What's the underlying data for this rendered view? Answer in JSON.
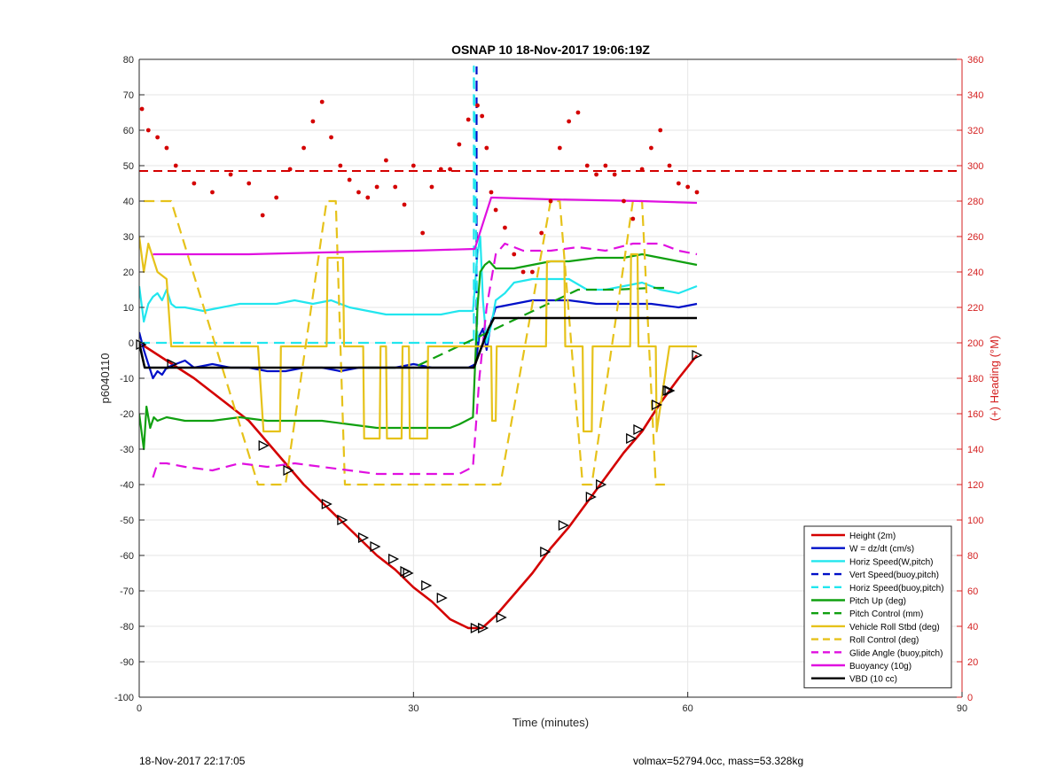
{
  "chart_data": {
    "type": "line",
    "title": "OSNAP 10 18-Nov-2017 19:06:19Z",
    "xlabel": "Time (minutes)",
    "ylabel": "p6040110",
    "y2label": "(+) Heading (°M)",
    "xlim": [
      0,
      90
    ],
    "ylim": [
      -100,
      80
    ],
    "y2lim": [
      0,
      360
    ],
    "xticks": [
      "0",
      "30",
      "60",
      "90"
    ],
    "yticks": [
      "-100",
      "-90",
      "-80",
      "-70",
      "-60",
      "-50",
      "-40",
      "-30",
      "-20",
      "-10",
      "0",
      "10",
      "20",
      "30",
      "40",
      "50",
      "60",
      "70",
      "80"
    ],
    "y2ticks": [
      "0",
      "20",
      "40",
      "60",
      "80",
      "100",
      "120",
      "140",
      "160",
      "180",
      "200",
      "220",
      "240",
      "260",
      "280",
      "300",
      "320",
      "340",
      "360"
    ],
    "grid": true,
    "legend_position": "bottom-right",
    "colors": {
      "red": "#d40000",
      "blue": "#0010c8",
      "cyan": "#22e6ee",
      "green": "#10a010",
      "yellow": "#e6c21a",
      "magenta": "#e010e0",
      "black": "#000000",
      "right_axis": "#d42020"
    },
    "series": [
      {
        "name": "Height (2m)",
        "color": "#d40000",
        "style": "solid",
        "x": [
          0,
          3,
          6,
          9,
          12,
          14,
          16,
          18,
          20,
          22,
          24,
          26,
          28,
          30,
          32,
          34,
          36,
          37.5,
          39,
          41,
          43,
          45,
          47,
          49,
          51,
          53,
          55,
          57,
          59,
          61
        ],
        "y": [
          0,
          -5,
          -10,
          -16,
          -22,
          -28,
          -34,
          -40,
          -45,
          -50,
          -55,
          -60,
          -64,
          -69,
          -73,
          -78,
          -80.5,
          -80.5,
          -77,
          -71,
          -65,
          -58,
          -52,
          -45,
          -38,
          -31,
          -25,
          -17,
          -10,
          -3.5
        ]
      },
      {
        "name": "W = dz/dt (cm/s)",
        "color": "#0010c8",
        "style": "solid",
        "x": [
          0,
          0.5,
          1,
          1.5,
          2,
          2.5,
          3,
          4,
          5,
          6,
          8,
          10,
          12,
          14,
          16,
          18,
          20,
          22,
          24,
          26,
          28,
          30,
          32,
          34,
          36,
          36.8,
          37.2,
          37.6,
          38,
          38.5,
          39,
          41,
          43,
          45,
          47,
          50,
          53,
          56,
          59,
          61
        ],
        "y": [
          3,
          -2,
          -6,
          -10,
          -8,
          -9,
          -7,
          -6,
          -5,
          -7,
          -6,
          -7,
          -7,
          -8,
          -8,
          -7,
          -7,
          -8,
          -7,
          -7,
          -7,
          -6,
          -7,
          -7,
          -7,
          -6,
          2,
          4,
          -2,
          6,
          10,
          11,
          12,
          12,
          12,
          11,
          11,
          11,
          10,
          11
        ]
      },
      {
        "name": "Horiz Speed(W,pitch)",
        "color": "#22e6ee",
        "style": "solid",
        "x": [
          0,
          0.5,
          1,
          1.5,
          2,
          2.5,
          3,
          3.5,
          4,
          5,
          7,
          9,
          11,
          13,
          15,
          17,
          19,
          21,
          22,
          23,
          25,
          27,
          29,
          31,
          33,
          35,
          36.5,
          37,
          37.3,
          37.6,
          38,
          38.5,
          39,
          40,
          41,
          43,
          45,
          47,
          49,
          51,
          53,
          55,
          57,
          59,
          61
        ],
        "y": [
          16,
          6,
          11,
          13,
          14,
          12,
          15,
          11,
          10,
          10,
          9,
          10,
          11,
          11,
          11,
          12,
          11,
          12,
          11,
          10,
          9,
          8,
          8,
          8,
          8,
          9,
          9,
          25,
          30,
          12,
          0,
          5,
          12,
          14,
          17,
          18,
          18,
          18,
          15,
          15,
          16,
          17,
          15,
          14,
          16
        ]
      },
      {
        "name": "Vert Speed(buoy,pitch)",
        "color": "#0010c8",
        "style": "dashed",
        "x": [
          36.9,
          36.9
        ],
        "y": [
          -5,
          78
        ]
      },
      {
        "name": "Horiz Speed(buoy,pitch)",
        "color": "#22e6ee",
        "style": "dashed",
        "x": [
          0,
          36.5,
          36.6,
          36.6,
          37
        ],
        "y": [
          0,
          0,
          0,
          78,
          0
        ]
      },
      {
        "name": "Pitch Up (deg)",
        "color": "#10a010",
        "style": "solid",
        "x": [
          0,
          0.5,
          0.8,
          1.2,
          1.6,
          2,
          3,
          5,
          8,
          11,
          14,
          17,
          20,
          23,
          26,
          29,
          32,
          34,
          35,
          36.5,
          37,
          37.3,
          37.8,
          38.3,
          39,
          41,
          43,
          45,
          47,
          50,
          53,
          55,
          57,
          59,
          61
        ],
        "y": [
          -20,
          -30,
          -18,
          -24,
          -21,
          -22,
          -21,
          -22,
          -22,
          -21,
          -22,
          -22,
          -22,
          -23,
          -24,
          -24,
          -24,
          -24,
          -23,
          -21,
          10,
          20,
          22,
          23,
          21,
          21,
          22,
          23,
          23,
          24,
          24,
          25,
          24,
          23,
          22
        ]
      },
      {
        "name": "Pitch Control (mm)",
        "color": "#10a010",
        "style": "dashed",
        "x": [
          25,
          30,
          48,
          52,
          56,
          58
        ],
        "y": [
          -7,
          -7,
          15,
          15,
          15.5,
          15.5
        ]
      },
      {
        "name": "Vehicle Roll Stbd (deg)",
        "color": "#e6c21a",
        "style": "solid",
        "x": [
          0,
          0.5,
          1,
          2,
          3,
          3.5,
          3.6,
          8,
          13,
          13.6,
          15.4,
          15.5,
          20.5,
          20.6,
          22.3,
          22.4,
          24.5,
          24.6,
          26.3,
          26.4,
          27,
          27.1,
          28.7,
          28.8,
          29.5,
          29.6,
          31.5,
          31.6,
          33,
          33.1,
          37,
          37.1,
          38.5,
          38.6,
          39,
          39.1,
          44.5,
          44.6,
          46.5,
          46.6,
          48.5,
          48.6,
          49.5,
          49.6,
          53.7,
          53.8,
          54.5,
          54.6,
          56.5,
          56.6,
          58,
          61
        ],
        "y": [
          30,
          20,
          28,
          20,
          18,
          -1,
          -1,
          -1,
          -1,
          -25,
          -25,
          -1,
          -1,
          24,
          24,
          -1,
          -1,
          -27,
          -27,
          -1,
          -1,
          -27,
          -27,
          -1,
          -1,
          -27,
          -27,
          -1,
          -1,
          -1,
          -1,
          -1,
          -1,
          -22,
          -22,
          -1,
          -1,
          23,
          23,
          -1,
          -1,
          -25,
          -25,
          -1,
          -1,
          25,
          25,
          -1,
          -1,
          -25,
          -1,
          -1
        ]
      },
      {
        "name": "Roll Control (deg)",
        "color": "#e6c21a",
        "style": "dashed",
        "x": [
          0.5,
          3.5,
          13,
          14,
          15,
          16,
          20.5,
          21.5,
          22.5,
          24.5,
          25.5,
          27,
          28,
          29,
          30,
          31.5,
          32.5,
          33,
          38.5,
          39.5,
          45,
          46,
          48.5,
          49.5,
          54,
          55,
          56.5,
          57.5
        ],
        "y": [
          40,
          40,
          -40,
          -40,
          -40,
          -40,
          40,
          40,
          -40,
          -40,
          -40,
          -40,
          -40,
          -40,
          -40,
          -40,
          -40,
          -40,
          -40,
          -40,
          40,
          40,
          -40,
          -40,
          40,
          40,
          -40,
          -40
        ]
      },
      {
        "name": "Glide Angle (buoy,pitch)",
        "color": "#e010e0",
        "style": "dashed",
        "x": [
          1.5,
          2,
          3,
          5,
          8,
          11,
          14,
          17,
          20,
          23,
          26,
          29,
          32,
          35,
          36.5,
          37.2,
          38,
          39,
          40,
          42,
          45,
          48,
          51,
          54,
          57,
          59,
          61
        ],
        "y": [
          -38,
          -34,
          -34,
          -35,
          -36,
          -34,
          -35,
          -34,
          -35,
          -36,
          -37,
          -37,
          -37,
          -37,
          -35,
          -10,
          10,
          25,
          28,
          26,
          26,
          27,
          26,
          28,
          28,
          26,
          25
        ]
      },
      {
        "name": "Buoyancy (10g)",
        "color": "#e010e0",
        "style": "solid",
        "x": [
          1.5,
          12,
          20,
          30,
          36.7,
          38.5,
          45,
          55,
          61
        ],
        "y": [
          25,
          25,
          25.5,
          26,
          26.5,
          41,
          40.5,
          40,
          39.5
        ]
      },
      {
        "name": "VBD (10 cc)",
        "color": "#000000",
        "style": "solid",
        "x": [
          0,
          0.6,
          36.6,
          38.2,
          38.8,
          61
        ],
        "y": [
          0,
          -7,
          -7,
          4,
          7,
          7
        ]
      }
    ],
    "heading_dots": {
      "axis": "right",
      "color": "#d40000",
      "reference_line": 297,
      "x": [
        0.3,
        1,
        2,
        3,
        4,
        6,
        8,
        10,
        12,
        13.5,
        15,
        16.5,
        18,
        19,
        20,
        21,
        22,
        23,
        24,
        25,
        26,
        27,
        28,
        29,
        30,
        31,
        32,
        33,
        34,
        35,
        36,
        37,
        37.5,
        38,
        38.5,
        39,
        40,
        41,
        42,
        43,
        44,
        45,
        46,
        47,
        48,
        49,
        50,
        51,
        52,
        53,
        54,
        55,
        56,
        57,
        58,
        59,
        60,
        61
      ],
      "y": [
        332,
        320,
        316,
        310,
        300,
        290,
        285,
        295,
        290,
        272,
        282,
        298,
        310,
        325,
        336,
        316,
        300,
        292,
        285,
        282,
        288,
        303,
        288,
        278,
        300,
        262,
        288,
        298,
        298,
        312,
        326,
        334,
        328,
        310,
        285,
        275,
        265,
        250,
        240,
        240,
        262,
        280,
        310,
        325,
        330,
        300,
        295,
        300,
        295,
        280,
        270,
        298,
        310,
        320,
        300,
        290,
        288,
        285
      ]
    },
    "dive_markers": {
      "x": [
        0.2,
        3.6,
        13.6,
        16.3,
        20.5,
        22.2,
        24.5,
        25.8,
        27.8,
        29.1,
        29.4,
        31.4,
        33.1,
        36.8,
        37.6,
        39.6,
        44.4,
        46.4,
        49.4,
        50.5,
        53.8,
        54.6,
        56.6,
        57.8,
        58,
        61
      ],
      "y": [
        -0.5,
        -6,
        -29,
        -36,
        -45.5,
        -50,
        -55,
        -57.5,
        -61,
        -64.5,
        -65,
        -68.5,
        -72,
        -80.5,
        -80.5,
        -77.5,
        -59,
        -51.5,
        -43.5,
        -40,
        -27,
        -24.5,
        -17.5,
        -13.5,
        -13.5,
        -3.5
      ]
    }
  },
  "footer": {
    "left": "18-Nov-2017 22:17:05",
    "right": "volmax=52794.0cc, mass=53.328kg"
  }
}
